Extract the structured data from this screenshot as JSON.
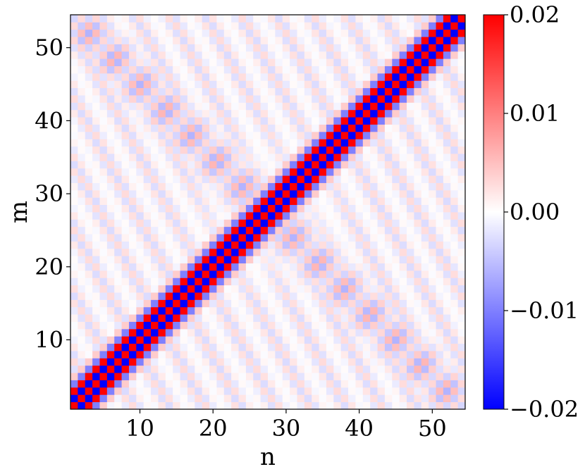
{
  "chart_data": {
    "type": "heatmap",
    "xlabel": "n",
    "ylabel": "m",
    "xlim": [
      0.5,
      54.5
    ],
    "ylim": [
      0.5,
      54.5
    ],
    "xticks": [
      10,
      20,
      30,
      40,
      50
    ],
    "yticks": [
      10,
      20,
      30,
      40,
      50
    ],
    "grid_size": 54,
    "colormap": "bwr",
    "colorbar": {
      "vmin": -0.02,
      "vmax": 0.02,
      "ticks": [
        0.02,
        0.01,
        0.0,
        -0.01,
        -0.02
      ],
      "tick_labels": [
        "0.02",
        "0.01",
        "0.00",
        "−0.01",
        "−0.02"
      ]
    },
    "pattern": {
      "main_diagonal": "strong checkerboard band along m = n, alternating +0.02 / -0.02 with period 2, band half-width about 2",
      "anti_diagonal_lobes": "faint checkerboard bands along m + n = 55 in the upper-left and lower-right regions, magnitude about 0.005",
      "background": "weak checkerboard, magnitude about 0.002-0.004, near zero in center"
    },
    "colors": {
      "negative": "#0000ff",
      "zero": "#ffffff",
      "positive": "#ff0000"
    }
  }
}
